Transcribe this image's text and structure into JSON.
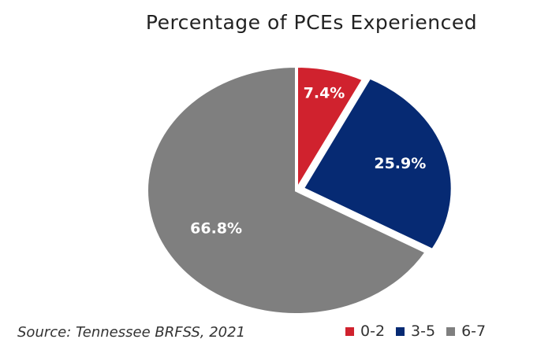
{
  "chart_data": {
    "type": "pie",
    "title": "Percentage of PCEs Experienced",
    "categories": [
      "0-2",
      "3-5",
      "6-7"
    ],
    "values": [
      7.4,
      25.9,
      66.8
    ],
    "labels": [
      "7.4%",
      "25.9%",
      "66.8%"
    ],
    "colors": [
      "#d0222e",
      "#062a73",
      "#7f7f7f"
    ],
    "legend": "bottom-right",
    "exploded_slices": [
      "3-5"
    ]
  },
  "source": "Source: Tennessee BRFSS, 2021"
}
